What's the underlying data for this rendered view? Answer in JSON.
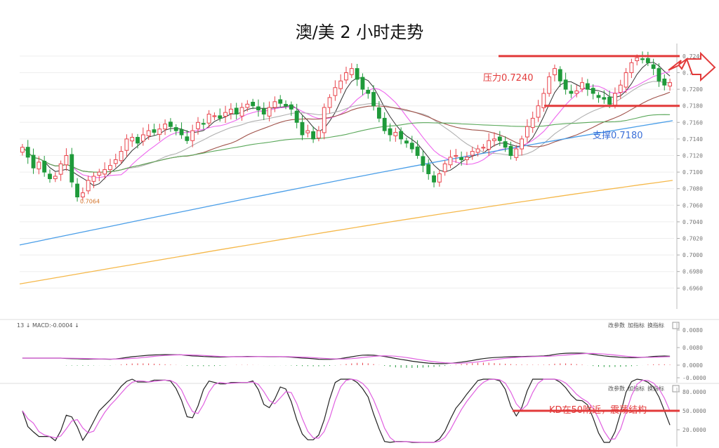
{
  "title": "澳/美 2 小时走势",
  "chart_data": [
    {
      "type": "candlestick",
      "panel": "price",
      "ylim": [
        0.6945,
        0.7245
      ],
      "y_ticks": [
        "0.7240",
        "0.7220",
        "0.7200",
        "0.7180",
        "0.7160",
        "0.7140",
        "0.7120",
        "0.7100",
        "0.7080",
        "0.7060",
        "0.7040",
        "0.7020",
        "0.7000",
        "0.6980",
        "0.6960"
      ],
      "y_tick_values": [
        0.724,
        0.722,
        0.72,
        0.718,
        0.716,
        0.714,
        0.712,
        0.71,
        0.708,
        0.706,
        0.704,
        0.702,
        0.7,
        0.698,
        0.696
      ],
      "grid": true,
      "low_marker": "0.7064",
      "low_marker_value": 0.7064,
      "annotations": {
        "resistance": "压力0.7240",
        "resistance_value": 0.724,
        "support": "支撑0.7180",
        "support_value": 0.718
      },
      "close": [
        0.713,
        0.7118,
        0.7105,
        0.7112,
        0.71,
        0.7092,
        0.7095,
        0.711,
        0.712,
        0.7088,
        0.707,
        0.7075,
        0.709,
        0.7095,
        0.71,
        0.7103,
        0.7108,
        0.7115,
        0.7125,
        0.714,
        0.7142,
        0.7135,
        0.7145,
        0.715,
        0.7148,
        0.7152,
        0.7158,
        0.7155,
        0.715,
        0.7145,
        0.7138,
        0.715,
        0.716,
        0.7158,
        0.717,
        0.7168,
        0.7165,
        0.7172,
        0.7176,
        0.717,
        0.7178,
        0.7182,
        0.718,
        0.7175,
        0.717,
        0.7178,
        0.7185,
        0.7183,
        0.718,
        0.7176,
        0.716,
        0.7145,
        0.715,
        0.714,
        0.715,
        0.7178,
        0.719,
        0.7202,
        0.721,
        0.722,
        0.7225,
        0.7212,
        0.72,
        0.7195,
        0.718,
        0.7165,
        0.715,
        0.7145,
        0.7148,
        0.714,
        0.7135,
        0.7128,
        0.712,
        0.7108,
        0.7098,
        0.7088,
        0.7098,
        0.711,
        0.7118,
        0.712,
        0.7115,
        0.7118,
        0.7125,
        0.7128,
        0.713,
        0.7138,
        0.714,
        0.7138,
        0.713,
        0.712,
        0.7128,
        0.714,
        0.7155,
        0.7165,
        0.718,
        0.7195,
        0.7215,
        0.7225,
        0.721,
        0.72,
        0.7195,
        0.7198,
        0.7208,
        0.72,
        0.7195,
        0.719,
        0.7188,
        0.7182,
        0.7195,
        0.7205,
        0.722,
        0.7232,
        0.7238,
        0.7236,
        0.7232,
        0.7225,
        0.721,
        0.7205,
        0.7208
      ]
    },
    {
      "type": "line",
      "panel": "macd",
      "label": "MACD:-0.0004",
      "period": "13",
      "y_ticks": [
        "0.0080",
        "0.0080",
        "0.0000",
        "-0.0000"
      ],
      "buttons": [
        "改参数",
        "加指标",
        "换指标"
      ]
    },
    {
      "type": "line",
      "panel": "kd",
      "y_ticks": [
        "80.0000",
        "50.0000",
        "20.0000"
      ],
      "buttons": [
        "改参数",
        "加指标",
        "换指标"
      ],
      "annotation": "KD在50附近，震荡结构"
    }
  ],
  "colors": {
    "up": "#e8434b",
    "down": "#1f9a3a",
    "ma5": "#333333",
    "ma10": "#ee66ee",
    "ma20": "#b0b0b0",
    "ma30": "#a0524a",
    "ma60": "#5aa85a",
    "ma120": "#4a9ee8",
    "ma250": "#f5b84a",
    "annotation_red": "#e23a3a",
    "annotation_blue": "#3a6fd8"
  }
}
